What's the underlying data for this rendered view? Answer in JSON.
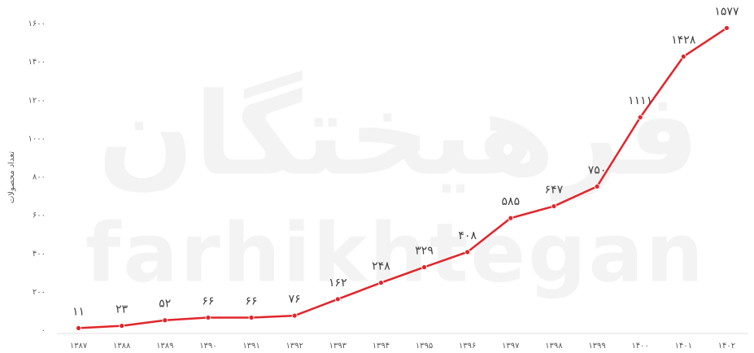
{
  "chart_data": {
    "type": "line",
    "watermark": [
      "فرهیختگان",
      "farhikhtegan"
    ],
    "y_label": "تعداد محصولات",
    "categories": [
      "۱۳۸۷",
      "۱۳۸۸",
      "۱۳۸۹",
      "۱۳۹۰",
      "۱۳۹۱",
      "۱۳۹۲",
      "۱۳۹۳",
      "۱۳۹۴",
      "۱۳۹۵",
      "۱۳۹۶",
      "۱۳۹۷",
      "۱۳۹۸",
      "۱۳۹۹",
      "۱۴۰۰",
      "۱۴۰۱",
      "۱۴۰۲"
    ],
    "values": [
      11,
      23,
      52,
      66,
      66,
      76,
      162,
      248,
      329,
      408,
      585,
      647,
      750,
      1111,
      1428,
      1577
    ],
    "value_labels": [
      "۱۱",
      "۲۳",
      "۵۲",
      "۶۶",
      "۶۶",
      "۷۶",
      "۱۶۲",
      "۲۴۸",
      "۳۲۹",
      "۴۰۸",
      "۵۸۵",
      "۶۴۷",
      "۷۵۰",
      "۱۱۱۱",
      "۱۴۲۸",
      "۱۵۷۷"
    ],
    "color": "#e0262b",
    "ylim": [
      0,
      1600
    ],
    "yticks": [
      {
        "value": 0,
        "label": "۰"
      },
      {
        "value": 200,
        "label": "۲۰۰"
      },
      {
        "value": 400,
        "label": "۴۰۰"
      },
      {
        "value": 600,
        "label": "۶۰۰"
      },
      {
        "value": 800,
        "label": "۸۰۰"
      },
      {
        "value": 1000,
        "label": "۱۰۰۰"
      },
      {
        "value": 1200,
        "label": "۱۲۰۰"
      },
      {
        "value": 1400,
        "label": "۱۴۰۰"
      },
      {
        "value": 1600,
        "label": "۱۶۰۰"
      }
    ],
    "grid": false
  }
}
